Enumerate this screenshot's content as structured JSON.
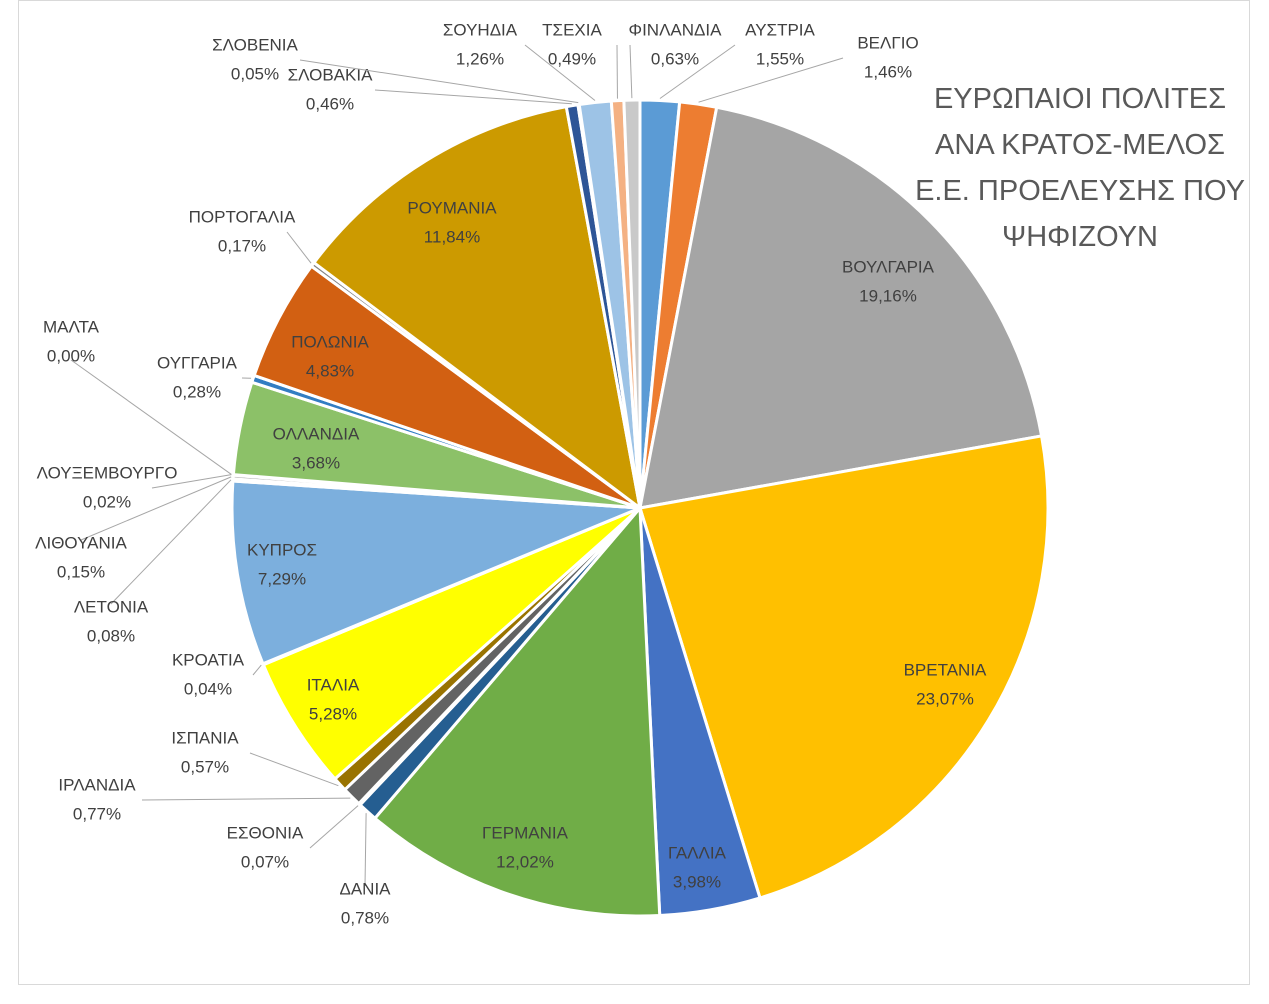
{
  "chart_data": {
    "type": "pie",
    "title": "ΕΥΡΩΠΑΙΟΙ ΠΟΛΙΤΕΣ ΑΝΑ ΚΡΑΤΟΣ-ΜΕΛΟΣ Ε.Ε. ΠΡΟΕΛΕΥΣΗΣ ΠΟΥ ΨΗΦΙΖΟΥΝ",
    "categories": [
      "ΑΥΣΤΡΙΑ",
      "ΒΕΛΓΙΟ",
      "ΒΟΥΛΓΑΡΙΑ",
      "ΒΡΕΤΑΝΙΑ",
      "ΓΑΛΛΙΑ",
      "ΓΕΡΜΑΝΙΑ",
      "ΔΑΝΙΑ",
      "ΕΣΘΟΝΙΑ",
      "ΙΡΛΑΝΔΙΑ",
      "ΙΣΠΑΝΙΑ",
      "ΙΤΑΛΙΑ",
      "ΚΡΟΑΤΙΑ",
      "ΚΥΠΡΟΣ",
      "ΛΕΤΟΝΙΑ",
      "ΛΙΘΟΥΑΝΙΑ",
      "ΛΟΥΞΕΜΒΟΥΡΓΟ",
      "ΜΑΛΤΑ",
      "ΟΛΛΑΝΔΙΑ",
      "ΟΥΓΓΑΡΙΑ",
      "ΠΟΛΩΝΙΑ",
      "ΠΟΡΤΟΓΑΛΙΑ",
      "ΡΟΥΜΑΝΙΑ",
      "ΣΛΟΒΑΚΙΑ",
      "ΣΛΟΒΕΝΙΑ",
      "ΣΟΥΗΔΙΑ",
      "ΤΣΕΧΙΑ",
      "ΦΙΝΛΑΝΔΙΑ"
    ],
    "values": [
      1.55,
      1.46,
      19.16,
      23.07,
      3.98,
      12.02,
      0.78,
      0.07,
      0.77,
      0.57,
      5.28,
      0.04,
      7.29,
      0.08,
      0.15,
      0.02,
      0,
      3.68,
      0.28,
      4.83,
      0.17,
      11.84,
      0.46,
      0.05,
      1.26,
      0.49,
      0.63
    ],
    "value_labels": [
      "1,55%",
      "1,46%",
      "19,16%",
      "23,07%",
      "3,98%",
      "12,02%",
      "0,78%",
      "0,07%",
      "0,77%",
      "0,57%",
      "5,28%",
      "0,04%",
      "7,29%",
      "0,08%",
      "0,15%",
      "0,02%",
      "0,00%",
      "3,68%",
      "0,28%",
      "4,83%",
      "0,17%",
      "11,84%",
      "0,46%",
      "0,05%",
      "1,26%",
      "0,49%",
      "0,63%"
    ],
    "colors": [
      "#5B9BD5",
      "#ED7D31",
      "#A5A5A5",
      "#FFC000",
      "#4472C4",
      "#70AD47",
      "#255E91",
      "#9E480E",
      "#636363",
      "#997300",
      "#FFFF00",
      "#43682B",
      "#7CAFDD",
      "#F1975A",
      "#B7B7B7",
      "#FFCD33",
      "#698ED0",
      "#8CC168",
      "#327DC2",
      "#D26012",
      "#848484",
      "#CC9A00",
      "#2E5597",
      "#B8632A",
      "#9DC3E6",
      "#F4B183",
      "#C9C9C9"
    ]
  }
}
